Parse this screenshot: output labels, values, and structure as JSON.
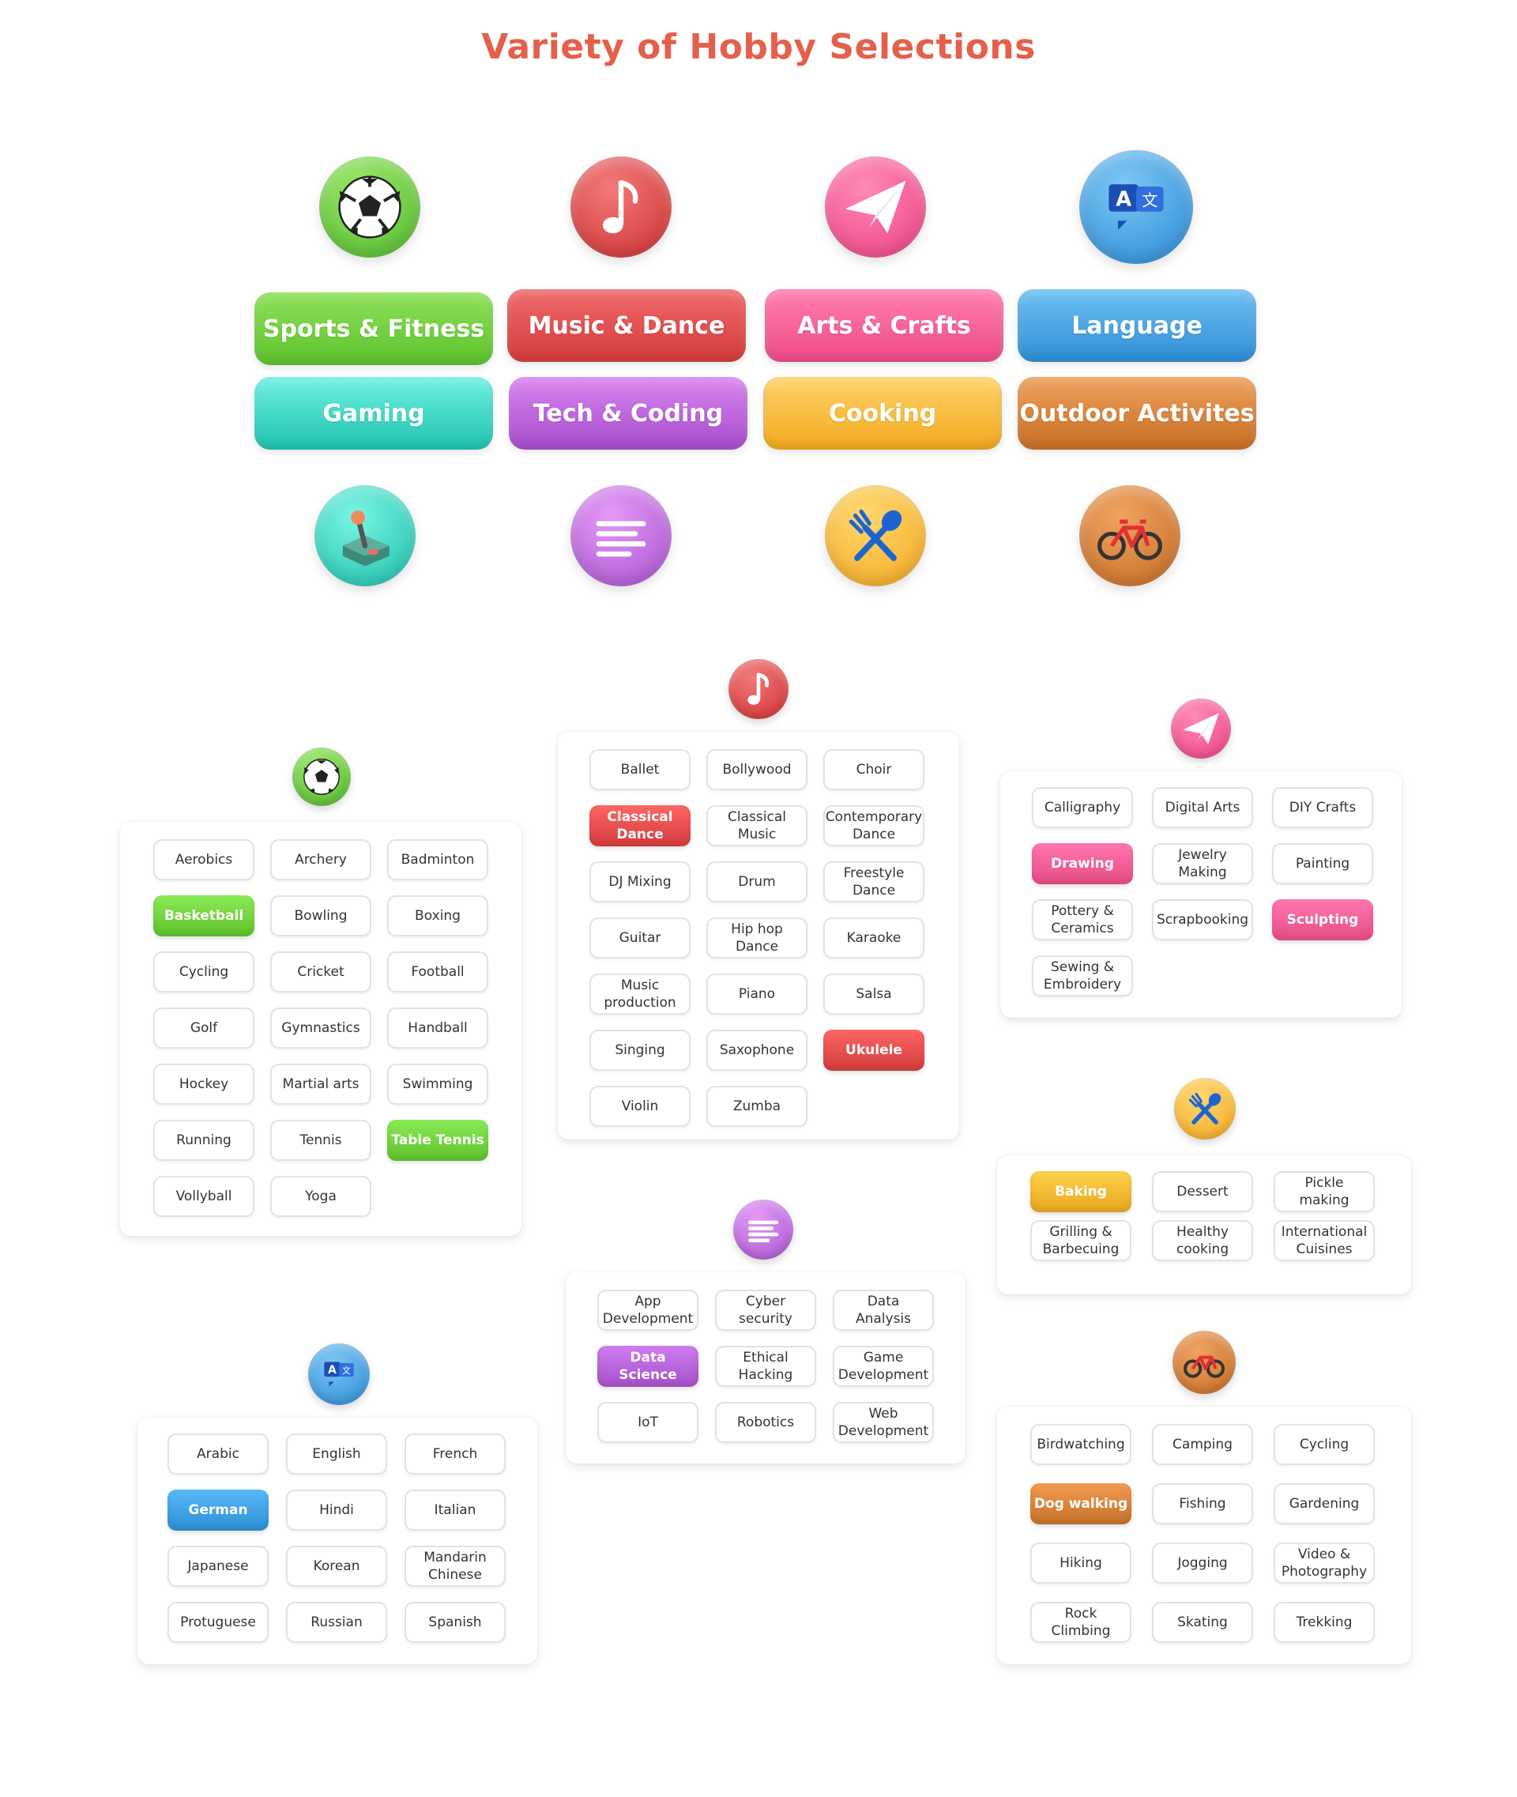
{
  "page": {
    "title": "Variety of Hobby Selections"
  },
  "categories": [
    {
      "label": "Sports & Fitness",
      "icon": "soccer-ball-icon",
      "color": "#6fcf3a"
    },
    {
      "label": "Music & Dance",
      "icon": "music-note-icon",
      "color": "#e24a4a"
    },
    {
      "label": "Arts & Crafts",
      "icon": "paper-plane-icon",
      "color": "#f45a93"
    },
    {
      "label": "Language",
      "icon": "translate-icon",
      "color": "#3a9de0"
    },
    {
      "label": "Gaming",
      "icon": "joystick-icon",
      "color": "#28d6c3"
    },
    {
      "label": "Tech & Coding",
      "icon": "text-lines-icon",
      "color": "#b35fd6"
    },
    {
      "label": "Cooking",
      "icon": "fork-spoon-icon",
      "color": "#f5b52e"
    },
    {
      "label": "Outdoor Activites",
      "icon": "bicycle-icon",
      "color": "#d47f35"
    }
  ],
  "panels": {
    "sports": {
      "selected_color": "#6fcf3a",
      "items": [
        {
          "label": "Aerobics",
          "selected": false
        },
        {
          "label": "Archery",
          "selected": false
        },
        {
          "label": "Badminton",
          "selected": false
        },
        {
          "label": "Basketball",
          "selected": true
        },
        {
          "label": "Bowling",
          "selected": false
        },
        {
          "label": "Boxing",
          "selected": false
        },
        {
          "label": "Cycling",
          "selected": false
        },
        {
          "label": "Cricket",
          "selected": false
        },
        {
          "label": "Football",
          "selected": false
        },
        {
          "label": "Golf",
          "selected": false
        },
        {
          "label": "Gymnastics",
          "selected": false
        },
        {
          "label": "Handball",
          "selected": false
        },
        {
          "label": "Hockey",
          "selected": false
        },
        {
          "label": "Martial arts",
          "selected": false
        },
        {
          "label": "Swimming",
          "selected": false
        },
        {
          "label": "Running",
          "selected": false
        },
        {
          "label": "Tennis",
          "selected": false
        },
        {
          "label": "Table Tennis",
          "selected": true
        },
        {
          "label": "Vollyball",
          "selected": false
        },
        {
          "label": "Yoga",
          "selected": false
        }
      ]
    },
    "music": {
      "selected_color": "#e24a4a",
      "items": [
        {
          "label": "Ballet",
          "selected": false
        },
        {
          "label": "Bollywood",
          "selected": false
        },
        {
          "label": "Choir",
          "selected": false
        },
        {
          "label": "Classical Dance",
          "selected": true
        },
        {
          "label": "Classical Music",
          "selected": false
        },
        {
          "label": "Contemporary Dance",
          "selected": false
        },
        {
          "label": "DJ Mixing",
          "selected": false
        },
        {
          "label": "Drum",
          "selected": false
        },
        {
          "label": "Freestyle Dance",
          "selected": false
        },
        {
          "label": "Guitar",
          "selected": false
        },
        {
          "label": "Hip hop Dance",
          "selected": false
        },
        {
          "label": "Karaoke",
          "selected": false
        },
        {
          "label": "Music production",
          "selected": false
        },
        {
          "label": "Piano",
          "selected": false
        },
        {
          "label": "Salsa",
          "selected": false
        },
        {
          "label": "Singing",
          "selected": false
        },
        {
          "label": "Saxophone",
          "selected": false
        },
        {
          "label": "Ukulele",
          "selected": true
        },
        {
          "label": "Violin",
          "selected": false
        },
        {
          "label": "Zumba",
          "selected": false
        }
      ]
    },
    "arts": {
      "selected_color": "#f45a93",
      "items": [
        {
          "label": "Calligraphy",
          "selected": false
        },
        {
          "label": "Digital Arts",
          "selected": false
        },
        {
          "label": "DIY Crafts",
          "selected": false
        },
        {
          "label": "Drawing",
          "selected": true
        },
        {
          "label": "Jewelry Making",
          "selected": false
        },
        {
          "label": "Painting",
          "selected": false
        },
        {
          "label": "Pottery & Ceramics",
          "selected": false
        },
        {
          "label": "Scrapbooking",
          "selected": false
        },
        {
          "label": "Sculpting",
          "selected": true
        },
        {
          "label": "Sewing & Embroidery",
          "selected": false
        }
      ]
    },
    "cooking": {
      "selected_color": "#f5b52e",
      "items": [
        {
          "label": "Baking",
          "selected": true
        },
        {
          "label": "Dessert",
          "selected": false
        },
        {
          "label": "Pickle making",
          "selected": false
        },
        {
          "label": "Grilling & Barbecuing",
          "selected": false
        },
        {
          "label": "Healthy cooking",
          "selected": false
        },
        {
          "label": "International Cuisines",
          "selected": false
        }
      ]
    },
    "tech": {
      "selected_color": "#b35fd6",
      "items": [
        {
          "label": "App Development",
          "selected": false
        },
        {
          "label": "Cyber security",
          "selected": false
        },
        {
          "label": "Data Analysis",
          "selected": false
        },
        {
          "label": "Data Science",
          "selected": true
        },
        {
          "label": "Ethical Hacking",
          "selected": false
        },
        {
          "label": "Game Development",
          "selected": false
        },
        {
          "label": "IoT",
          "selected": false
        },
        {
          "label": "Robotics",
          "selected": false
        },
        {
          "label": "Web Development",
          "selected": false
        }
      ]
    },
    "language": {
      "selected_color": "#3a9de0",
      "items": [
        {
          "label": "Arabic",
          "selected": false
        },
        {
          "label": "English",
          "selected": false
        },
        {
          "label": "French",
          "selected": false
        },
        {
          "label": "German",
          "selected": true
        },
        {
          "label": "Hindi",
          "selected": false
        },
        {
          "label": "Italian",
          "selected": false
        },
        {
          "label": "Japanese",
          "selected": false
        },
        {
          "label": "Korean",
          "selected": false
        },
        {
          "label": "Mandarin Chinese",
          "selected": false
        },
        {
          "label": "Protuguese",
          "selected": false
        },
        {
          "label": "Russian",
          "selected": false
        },
        {
          "label": "Spanish",
          "selected": false
        }
      ]
    },
    "outdoor": {
      "selected_color": "#d47f35",
      "items": [
        {
          "label": "Birdwatching",
          "selected": false
        },
        {
          "label": "Camping",
          "selected": false
        },
        {
          "label": "Cycling",
          "selected": false
        },
        {
          "label": "Dog walking",
          "selected": true
        },
        {
          "label": "Fishing",
          "selected": false
        },
        {
          "label": "Gardening",
          "selected": false
        },
        {
          "label": "Hiking",
          "selected": false
        },
        {
          "label": "Jogging",
          "selected": false
        },
        {
          "label": "Video & Photography",
          "selected": false
        },
        {
          "label": "Rock Climbing",
          "selected": false
        },
        {
          "label": "Skating",
          "selected": false
        },
        {
          "label": "Trekking",
          "selected": false
        }
      ]
    }
  }
}
